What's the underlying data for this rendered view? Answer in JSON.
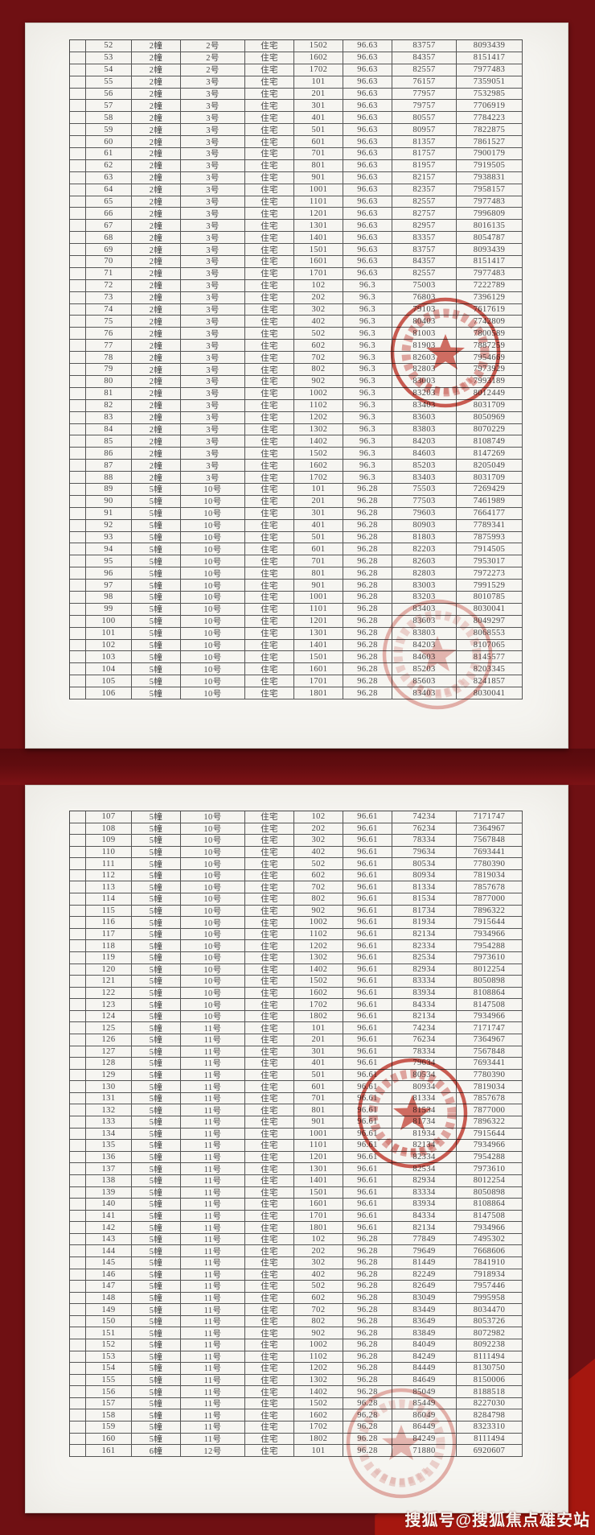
{
  "watermark": {
    "text": "搜狐号@搜狐焦点雄安站"
  },
  "colors": {
    "background_maroon": "#6f1013",
    "accent_bright_red": "#a5170f",
    "page_paper": "#f6f5f1",
    "stamp_red": "#c63c30",
    "table_line": "#565656"
  },
  "seal": {
    "icon": "star-icon",
    "glyph": "★"
  },
  "pages": [
    {
      "name": "page-1",
      "rows": [
        [
          "52",
          "2幢",
          "2号",
          "住宅",
          "1502",
          "96.63",
          "83757",
          "8093439"
        ],
        [
          "53",
          "2幢",
          "2号",
          "住宅",
          "1602",
          "96.63",
          "84357",
          "8151417"
        ],
        [
          "54",
          "2幢",
          "2号",
          "住宅",
          "1702",
          "96.63",
          "82557",
          "7977483"
        ],
        [
          "55",
          "2幢",
          "3号",
          "住宅",
          "101",
          "96.63",
          "76157",
          "7359051"
        ],
        [
          "56",
          "2幢",
          "3号",
          "住宅",
          "201",
          "96.63",
          "77957",
          "7532985"
        ],
        [
          "57",
          "2幢",
          "3号",
          "住宅",
          "301",
          "96.63",
          "79757",
          "7706919"
        ],
        [
          "58",
          "2幢",
          "3号",
          "住宅",
          "401",
          "96.63",
          "80557",
          "7784223"
        ],
        [
          "59",
          "2幢",
          "3号",
          "住宅",
          "501",
          "96.63",
          "80957",
          "7822875"
        ],
        [
          "60",
          "2幢",
          "3号",
          "住宅",
          "601",
          "96.63",
          "81357",
          "7861527"
        ],
        [
          "61",
          "2幢",
          "3号",
          "住宅",
          "701",
          "96.63",
          "81757",
          "7900179"
        ],
        [
          "62",
          "2幢",
          "3号",
          "住宅",
          "801",
          "96.63",
          "81957",
          "7919505"
        ],
        [
          "63",
          "2幢",
          "3号",
          "住宅",
          "901",
          "96.63",
          "82157",
          "7938831"
        ],
        [
          "64",
          "2幢",
          "3号",
          "住宅",
          "1001",
          "96.63",
          "82357",
          "7958157"
        ],
        [
          "65",
          "2幢",
          "3号",
          "住宅",
          "1101",
          "96.63",
          "82557",
          "7977483"
        ],
        [
          "66",
          "2幢",
          "3号",
          "住宅",
          "1201",
          "96.63",
          "82757",
          "7996809"
        ],
        [
          "67",
          "2幢",
          "3号",
          "住宅",
          "1301",
          "96.63",
          "82957",
          "8016135"
        ],
        [
          "68",
          "2幢",
          "3号",
          "住宅",
          "1401",
          "96.63",
          "83357",
          "8054787"
        ],
        [
          "69",
          "2幢",
          "3号",
          "住宅",
          "1501",
          "96.63",
          "83757",
          "8093439"
        ],
        [
          "70",
          "2幢",
          "3号",
          "住宅",
          "1601",
          "96.63",
          "84357",
          "8151417"
        ],
        [
          "71",
          "2幢",
          "3号",
          "住宅",
          "1701",
          "96.63",
          "82557",
          "7977483"
        ],
        [
          "72",
          "2幢",
          "3号",
          "住宅",
          "102",
          "96.3",
          "75003",
          "7222789"
        ],
        [
          "73",
          "2幢",
          "3号",
          "住宅",
          "202",
          "96.3",
          "76803",
          "7396129"
        ],
        [
          "74",
          "2幢",
          "3号",
          "住宅",
          "302",
          "96.3",
          "79103",
          "7617619"
        ],
        [
          "75",
          "2幢",
          "3号",
          "住宅",
          "402",
          "96.3",
          "80403",
          "7742809"
        ],
        [
          "76",
          "2幢",
          "3号",
          "住宅",
          "502",
          "96.3",
          "81003",
          "7800589"
        ],
        [
          "77",
          "2幢",
          "3号",
          "住宅",
          "602",
          "96.3",
          "81903",
          "7887259"
        ],
        [
          "78",
          "2幢",
          "3号",
          "住宅",
          "702",
          "96.3",
          "82603",
          "7954669"
        ],
        [
          "79",
          "2幢",
          "3号",
          "住宅",
          "802",
          "96.3",
          "82803",
          "7973929"
        ],
        [
          "80",
          "2幢",
          "3号",
          "住宅",
          "902",
          "96.3",
          "83003",
          "7993189"
        ],
        [
          "81",
          "2幢",
          "3号",
          "住宅",
          "1002",
          "96.3",
          "83203",
          "8012449"
        ],
        [
          "82",
          "2幢",
          "3号",
          "住宅",
          "1102",
          "96.3",
          "83403",
          "8031709"
        ],
        [
          "83",
          "2幢",
          "3号",
          "住宅",
          "1202",
          "96.3",
          "83603",
          "8050969"
        ],
        [
          "84",
          "2幢",
          "3号",
          "住宅",
          "1302",
          "96.3",
          "83803",
          "8070229"
        ],
        [
          "85",
          "2幢",
          "3号",
          "住宅",
          "1402",
          "96.3",
          "84203",
          "8108749"
        ],
        [
          "86",
          "2幢",
          "3号",
          "住宅",
          "1502",
          "96.3",
          "84603",
          "8147269"
        ],
        [
          "87",
          "2幢",
          "3号",
          "住宅",
          "1602",
          "96.3",
          "85203",
          "8205049"
        ],
        [
          "88",
          "2幢",
          "3号",
          "住宅",
          "1702",
          "96.3",
          "83403",
          "8031709"
        ],
        [
          "89",
          "5幢",
          "10号",
          "住宅",
          "101",
          "96.28",
          "75503",
          "7269429"
        ],
        [
          "90",
          "5幢",
          "10号",
          "住宅",
          "201",
          "96.28",
          "77503",
          "7461989"
        ],
        [
          "91",
          "5幢",
          "10号",
          "住宅",
          "301",
          "96.28",
          "79603",
          "7664177"
        ],
        [
          "92",
          "5幢",
          "10号",
          "住宅",
          "401",
          "96.28",
          "80903",
          "7789341"
        ],
        [
          "93",
          "5幢",
          "10号",
          "住宅",
          "501",
          "96.28",
          "81803",
          "7875993"
        ],
        [
          "94",
          "5幢",
          "10号",
          "住宅",
          "601",
          "96.28",
          "82203",
          "7914505"
        ],
        [
          "95",
          "5幢",
          "10号",
          "住宅",
          "701",
          "96.28",
          "82603",
          "7953017"
        ],
        [
          "96",
          "5幢",
          "10号",
          "住宅",
          "801",
          "96.28",
          "82803",
          "7972273"
        ],
        [
          "97",
          "5幢",
          "10号",
          "住宅",
          "901",
          "96.28",
          "83003",
          "7991529"
        ],
        [
          "98",
          "5幢",
          "10号",
          "住宅",
          "1001",
          "96.28",
          "83203",
          "8010785"
        ],
        [
          "99",
          "5幢",
          "10号",
          "住宅",
          "1101",
          "96.28",
          "83403",
          "8030041"
        ],
        [
          "100",
          "5幢",
          "10号",
          "住宅",
          "1201",
          "96.28",
          "83603",
          "8049297"
        ],
        [
          "101",
          "5幢",
          "10号",
          "住宅",
          "1301",
          "96.28",
          "83803",
          "8068553"
        ],
        [
          "102",
          "5幢",
          "10号",
          "住宅",
          "1401",
          "96.28",
          "84203",
          "8107065"
        ],
        [
          "103",
          "5幢",
          "10号",
          "住宅",
          "1501",
          "96.28",
          "84603",
          "8145577"
        ],
        [
          "104",
          "5幢",
          "10号",
          "住宅",
          "1601",
          "96.28",
          "85203",
          "8203345"
        ],
        [
          "105",
          "5幢",
          "10号",
          "住宅",
          "1701",
          "96.28",
          "85603",
          "8241857"
        ],
        [
          "106",
          "5幢",
          "10号",
          "住宅",
          "1801",
          "96.28",
          "83403",
          "8030041"
        ]
      ]
    },
    {
      "name": "page-2",
      "rows": [
        [
          "107",
          "5幢",
          "10号",
          "住宅",
          "102",
          "96.61",
          "74234",
          "7171747"
        ],
        [
          "108",
          "5幢",
          "10号",
          "住宅",
          "202",
          "96.61",
          "76234",
          "7364967"
        ],
        [
          "109",
          "5幢",
          "10号",
          "住宅",
          "302",
          "96.61",
          "78334",
          "7567848"
        ],
        [
          "110",
          "5幢",
          "10号",
          "住宅",
          "402",
          "96.61",
          "79634",
          "7693441"
        ],
        [
          "111",
          "5幢",
          "10号",
          "住宅",
          "502",
          "96.61",
          "80534",
          "7780390"
        ],
        [
          "112",
          "5幢",
          "10号",
          "住宅",
          "602",
          "96.61",
          "80934",
          "7819034"
        ],
        [
          "113",
          "5幢",
          "10号",
          "住宅",
          "702",
          "96.61",
          "81334",
          "7857678"
        ],
        [
          "114",
          "5幢",
          "10号",
          "住宅",
          "802",
          "96.61",
          "81534",
          "7877000"
        ],
        [
          "115",
          "5幢",
          "10号",
          "住宅",
          "902",
          "96.61",
          "81734",
          "7896322"
        ],
        [
          "116",
          "5幢",
          "10号",
          "住宅",
          "1002",
          "96.61",
          "81934",
          "7915644"
        ],
        [
          "117",
          "5幢",
          "10号",
          "住宅",
          "1102",
          "96.61",
          "82134",
          "7934966"
        ],
        [
          "118",
          "5幢",
          "10号",
          "住宅",
          "1202",
          "96.61",
          "82334",
          "7954288"
        ],
        [
          "119",
          "5幢",
          "10号",
          "住宅",
          "1302",
          "96.61",
          "82534",
          "7973610"
        ],
        [
          "120",
          "5幢",
          "10号",
          "住宅",
          "1402",
          "96.61",
          "82934",
          "8012254"
        ],
        [
          "121",
          "5幢",
          "10号",
          "住宅",
          "1502",
          "96.61",
          "83334",
          "8050898"
        ],
        [
          "122",
          "5幢",
          "10号",
          "住宅",
          "1602",
          "96.61",
          "83934",
          "8108864"
        ],
        [
          "123",
          "5幢",
          "10号",
          "住宅",
          "1702",
          "96.61",
          "84334",
          "8147508"
        ],
        [
          "124",
          "5幢",
          "10号",
          "住宅",
          "1802",
          "96.61",
          "82134",
          "7934966"
        ],
        [
          "125",
          "5幢",
          "11号",
          "住宅",
          "101",
          "96.61",
          "74234",
          "7171747"
        ],
        [
          "126",
          "5幢",
          "11号",
          "住宅",
          "201",
          "96.61",
          "76234",
          "7364967"
        ],
        [
          "127",
          "5幢",
          "11号",
          "住宅",
          "301",
          "96.61",
          "78334",
          "7567848"
        ],
        [
          "128",
          "5幢",
          "11号",
          "住宅",
          "401",
          "96.61",
          "79634",
          "7693441"
        ],
        [
          "129",
          "5幢",
          "11号",
          "住宅",
          "501",
          "96.61",
          "80534",
          "7780390"
        ],
        [
          "130",
          "5幢",
          "11号",
          "住宅",
          "601",
          "96.61",
          "80934",
          "7819034"
        ],
        [
          "131",
          "5幢",
          "11号",
          "住宅",
          "701",
          "96.61",
          "81334",
          "7857678"
        ],
        [
          "132",
          "5幢",
          "11号",
          "住宅",
          "801",
          "96.61",
          "81534",
          "7877000"
        ],
        [
          "133",
          "5幢",
          "11号",
          "住宅",
          "901",
          "96.61",
          "81734",
          "7896322"
        ],
        [
          "134",
          "5幢",
          "11号",
          "住宅",
          "1001",
          "96.61",
          "81934",
          "7915644"
        ],
        [
          "135",
          "5幢",
          "11号",
          "住宅",
          "1101",
          "96.61",
          "82134",
          "7934966"
        ],
        [
          "136",
          "5幢",
          "11号",
          "住宅",
          "1201",
          "96.61",
          "82334",
          "7954288"
        ],
        [
          "137",
          "5幢",
          "11号",
          "住宅",
          "1301",
          "96.61",
          "82534",
          "7973610"
        ],
        [
          "138",
          "5幢",
          "11号",
          "住宅",
          "1401",
          "96.61",
          "82934",
          "8012254"
        ],
        [
          "139",
          "5幢",
          "11号",
          "住宅",
          "1501",
          "96.61",
          "83334",
          "8050898"
        ],
        [
          "140",
          "5幢",
          "11号",
          "住宅",
          "1601",
          "96.61",
          "83934",
          "8108864"
        ],
        [
          "141",
          "5幢",
          "11号",
          "住宅",
          "1701",
          "96.61",
          "84334",
          "8147508"
        ],
        [
          "142",
          "5幢",
          "11号",
          "住宅",
          "1801",
          "96.61",
          "82134",
          "7934966"
        ],
        [
          "143",
          "5幢",
          "11号",
          "住宅",
          "102",
          "96.28",
          "77849",
          "7495302"
        ],
        [
          "144",
          "5幢",
          "11号",
          "住宅",
          "202",
          "96.28",
          "79649",
          "7668606"
        ],
        [
          "145",
          "5幢",
          "11号",
          "住宅",
          "302",
          "96.28",
          "81449",
          "7841910"
        ],
        [
          "146",
          "5幢",
          "11号",
          "住宅",
          "402",
          "96.28",
          "82249",
          "7918934"
        ],
        [
          "147",
          "5幢",
          "11号",
          "住宅",
          "502",
          "96.28",
          "82649",
          "7957446"
        ],
        [
          "148",
          "5幢",
          "11号",
          "住宅",
          "602",
          "96.28",
          "83049",
          "7995958"
        ],
        [
          "149",
          "5幢",
          "11号",
          "住宅",
          "702",
          "96.28",
          "83449",
          "8034470"
        ],
        [
          "150",
          "5幢",
          "11号",
          "住宅",
          "802",
          "96.28",
          "83649",
          "8053726"
        ],
        [
          "151",
          "5幢",
          "11号",
          "住宅",
          "902",
          "96.28",
          "83849",
          "8072982"
        ],
        [
          "152",
          "5幢",
          "11号",
          "住宅",
          "1002",
          "96.28",
          "84049",
          "8092238"
        ],
        [
          "153",
          "5幢",
          "11号",
          "住宅",
          "1102",
          "96.28",
          "84249",
          "8111494"
        ],
        [
          "154",
          "5幢",
          "11号",
          "住宅",
          "1202",
          "96.28",
          "84449",
          "8130750"
        ],
        [
          "155",
          "5幢",
          "11号",
          "住宅",
          "1302",
          "96.28",
          "84649",
          "8150006"
        ],
        [
          "156",
          "5幢",
          "11号",
          "住宅",
          "1402",
          "96.28",
          "85049",
          "8188518"
        ],
        [
          "157",
          "5幢",
          "11号",
          "住宅",
          "1502",
          "96.28",
          "85449",
          "8227030"
        ],
        [
          "158",
          "5幢",
          "11号",
          "住宅",
          "1602",
          "96.28",
          "86049",
          "8284798"
        ],
        [
          "159",
          "5幢",
          "11号",
          "住宅",
          "1702",
          "96.28",
          "86449",
          "8323310"
        ],
        [
          "160",
          "5幢",
          "11号",
          "住宅",
          "1802",
          "96.28",
          "84249",
          "8111494"
        ],
        [
          "161",
          "6幢",
          "12号",
          "住宅",
          "101",
          "96.28",
          "71880",
          "6920607"
        ]
      ]
    }
  ]
}
